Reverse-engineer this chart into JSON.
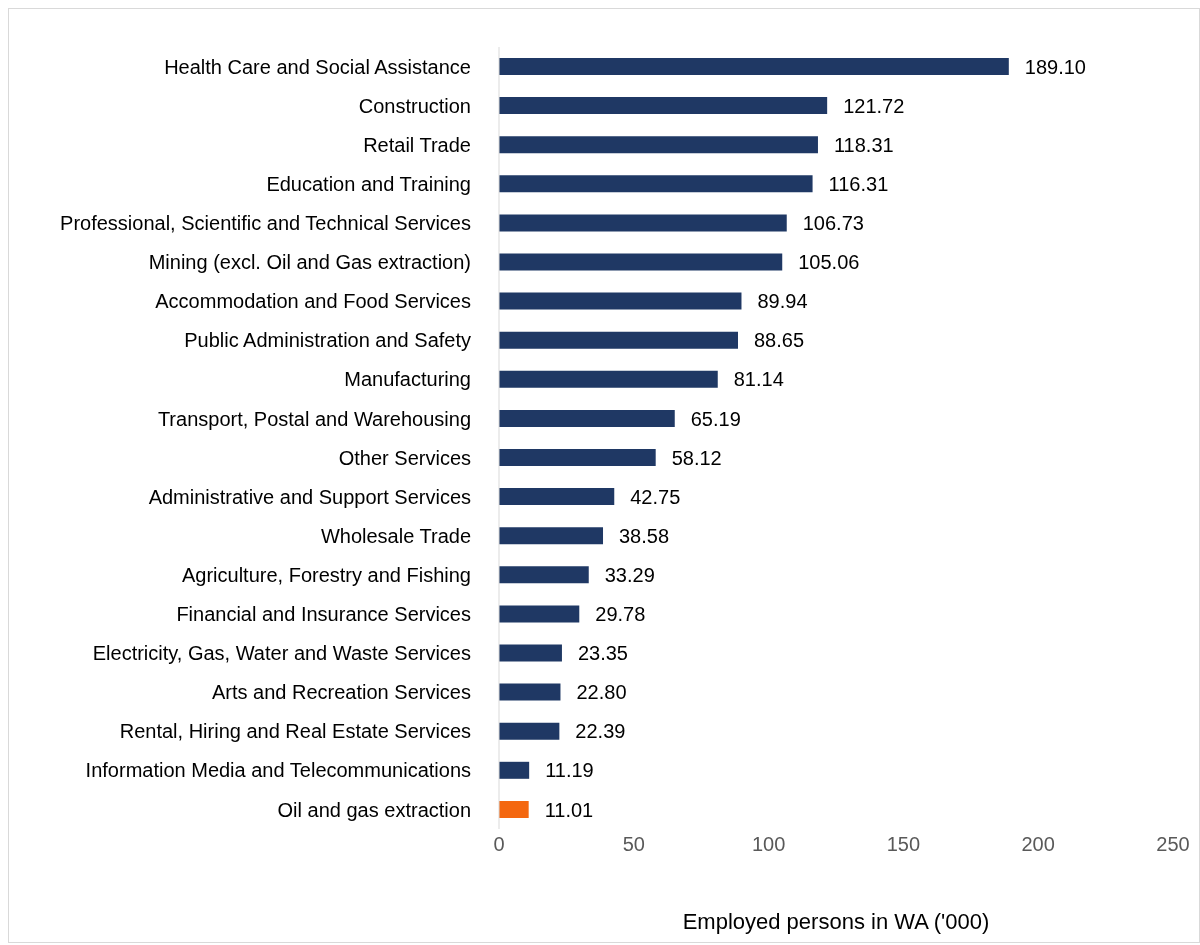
{
  "chart_data": {
    "type": "bar",
    "orientation": "horizontal",
    "xlabel": "Employed persons in WA ('000)",
    "categories": [
      "Health Care and Social Assistance",
      "Construction",
      "Retail Trade",
      "Education and Training",
      "Professional, Scientific and Technical Services",
      "Mining (excl. Oil and Gas extraction)",
      "Accommodation and Food Services",
      "Public Administration and Safety",
      "Manufacturing",
      "Transport, Postal and Warehousing",
      "Other Services",
      "Administrative and Support Services",
      "Wholesale Trade",
      "Agriculture, Forestry and Fishing",
      "Financial and Insurance Services",
      "Electricity, Gas, Water and Waste Services",
      "Arts and Recreation Services",
      "Rental, Hiring and Real Estate Services",
      "Information Media and Telecommunications",
      "Oil and gas extraction"
    ],
    "values": [
      189.1,
      121.72,
      118.31,
      116.31,
      106.73,
      105.06,
      89.94,
      88.65,
      81.14,
      65.19,
      58.12,
      42.75,
      38.58,
      33.29,
      29.78,
      23.35,
      22.8,
      22.39,
      11.19,
      11.01
    ],
    "value_labels": [
      "189.10",
      "121.72",
      "118.31",
      "116.31",
      "106.73",
      "105.06",
      "89.94",
      "88.65",
      "81.14",
      "65.19",
      "58.12",
      "42.75",
      "38.58",
      "33.29",
      "29.78",
      "23.35",
      "22.80",
      "22.39",
      "11.19",
      "11.01"
    ],
    "colors": [
      "#1f3864",
      "#1f3864",
      "#1f3864",
      "#1f3864",
      "#1f3864",
      "#1f3864",
      "#1f3864",
      "#1f3864",
      "#1f3864",
      "#1f3864",
      "#1f3864",
      "#1f3864",
      "#1f3864",
      "#1f3864",
      "#1f3864",
      "#1f3864",
      "#1f3864",
      "#1f3864",
      "#1f3864",
      "#f4670f"
    ],
    "xlim": [
      0,
      250
    ],
    "xticks": [
      0,
      50,
      100,
      150,
      200,
      250
    ],
    "grid": false
  }
}
